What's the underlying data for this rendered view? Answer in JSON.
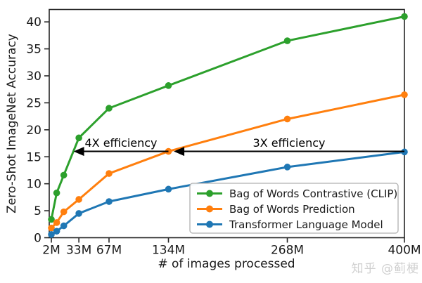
{
  "watermark": "知乎 @蓟梗",
  "chart_data": {
    "type": "line",
    "title": "",
    "xlabel": "# of images processed",
    "ylabel": "Zero-Shot ImageNet Accuracy",
    "grid": false,
    "legend_position": "lower right",
    "xlim": [
      -0.4,
      400
    ],
    "ylim": [
      0,
      42.3
    ],
    "x_unit": "M images",
    "x": [
      2,
      8,
      16,
      33,
      67,
      134,
      268,
      400
    ],
    "x_tick_values": [
      2,
      33,
      67,
      134,
      268,
      400
    ],
    "x_tick_labels": [
      "2M",
      "33M",
      "67M",
      "134M",
      "268M",
      "400M"
    ],
    "y_ticks": [
      0,
      5,
      10,
      15,
      20,
      25,
      30,
      35,
      40
    ],
    "series": [
      {
        "name": "Bag of Words Contrastive (CLIP)",
        "color": "#2ca02c",
        "values": [
          3.4,
          8.3,
          11.6,
          18.5,
          24.0,
          28.2,
          36.5,
          41.0
        ]
      },
      {
        "name": "Bag of Words Prediction",
        "color": "#ff7f0e",
        "values": [
          1.8,
          2.8,
          4.8,
          7.1,
          11.9,
          16.0,
          22.0,
          26.5
        ]
      },
      {
        "name": "Transformer Language Model",
        "color": "#1f77b4",
        "values": [
          0.6,
          1.2,
          2.2,
          4.5,
          6.7,
          9.0,
          13.1,
          15.9
        ]
      }
    ],
    "annotations": [
      {
        "text": "4X efficiency",
        "y": 16,
        "tail_x": 134,
        "tip_x": 27
      },
      {
        "text": "3X efficiency",
        "y": 16,
        "tail_x": 400,
        "tip_x": 140
      }
    ]
  }
}
